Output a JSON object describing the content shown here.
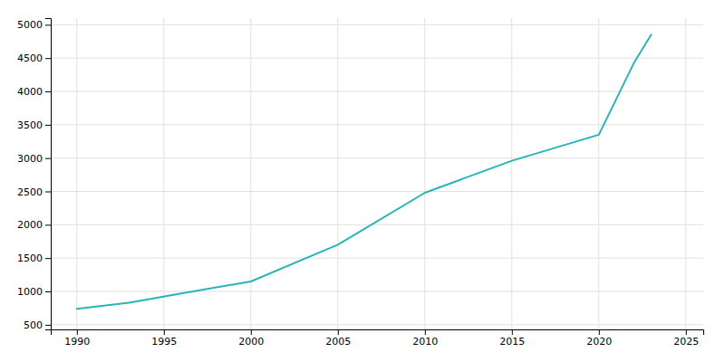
{
  "chart_data": {
    "type": "line",
    "x": [
      1990,
      1993,
      1996,
      2000,
      2005,
      2010,
      2015,
      2020,
      2022,
      2023
    ],
    "values": [
      740,
      830,
      970,
      1150,
      1700,
      2480,
      2960,
      3350,
      4420,
      4850
    ],
    "color": "#29b5b5",
    "xlim": [
      1988.5,
      2026
    ],
    "ylim": [
      430,
      5100
    ],
    "xticks": [
      1990,
      1995,
      2000,
      2005,
      2010,
      2015,
      2020,
      2025
    ],
    "yticks": [
      500,
      1000,
      1500,
      2000,
      2500,
      3000,
      3500,
      4000,
      4500,
      5000
    ],
    "grid": true
  }
}
